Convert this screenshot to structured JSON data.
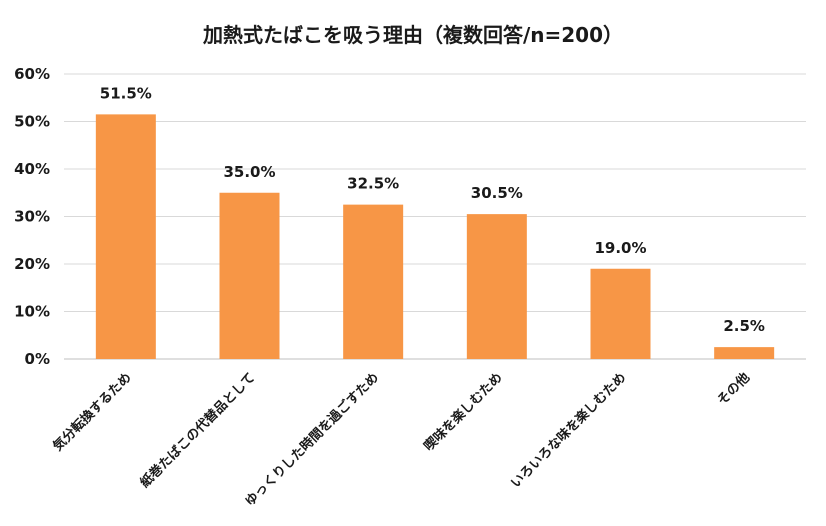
{
  "chart_data": {
    "type": "bar",
    "title": "加熱式たばこを吸う理由（複数回答/n=200）",
    "xlabel": "",
    "ylabel": "",
    "categories": [
      "気分転換するため",
      "紙巻たばこの代替品として",
      "ゆっくりした時間を過ごすため",
      "喫味を楽しむため",
      "いろいろな味を楽しむため",
      "その他"
    ],
    "values": [
      51.5,
      35.0,
      32.5,
      30.5,
      19.0,
      2.5
    ],
    "value_labels": [
      "51.5%",
      "35.0%",
      "32.5%",
      "30.5%",
      "19.0%",
      "2.5%"
    ],
    "ylim": [
      0,
      60
    ],
    "yticks": [
      0,
      10,
      20,
      30,
      40,
      50,
      60
    ],
    "ytick_labels": [
      "0%",
      "10%",
      "20%",
      "30%",
      "40%",
      "50%",
      "60%"
    ],
    "grid": true,
    "legend": "none",
    "bar_color": "#F79646",
    "grid_color": "#D9D9D9"
  }
}
